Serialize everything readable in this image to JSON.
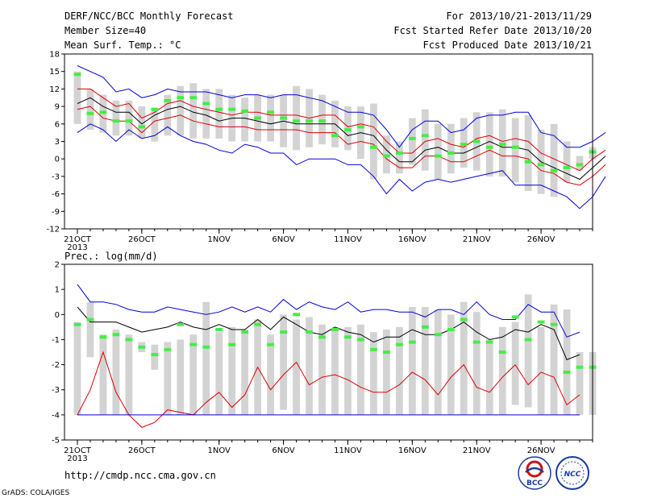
{
  "header": {
    "title": "DERF/NCC/BCC Monthly Forecast",
    "member_size": "Member Size=40",
    "variable": "Mean Surf. Temp.: °C",
    "period": "For 2013/10/21-2013/11/29",
    "started": "Fcst Started Refer Date 2013/10/20",
    "produced": "Fcst Produced Date 2013/10/21"
  },
  "footer": {
    "url": "http://cmdp.ncc.cma.gov.cn",
    "credit": "GrADS: COLA/IGES",
    "logo_bcc": "BCC",
    "logo_ncc": "NCC"
  },
  "colors": {
    "box": "#d3d3d4",
    "obs": "#44ee44",
    "extreme": "#0000dd",
    "percentile": "#dd0000",
    "mean": "#000000"
  },
  "chart_data": [
    {
      "type": "line",
      "title": "Mean Surf. Temp.: °C",
      "x_ticks": [
        {
          "day": 0,
          "label": "21OCT",
          "sub": "2013"
        },
        {
          "day": 5,
          "label": "26OCT"
        },
        {
          "day": 11,
          "label": "1NOV"
        },
        {
          "day": 16,
          "label": "6NOV"
        },
        {
          "day": 21,
          "label": "11NOV"
        },
        {
          "day": 26,
          "label": "16NOV"
        },
        {
          "day": 31,
          "label": "21NOV"
        },
        {
          "day": 36,
          "label": "26NOV"
        }
      ],
      "xlim": [
        -1,
        40
      ],
      "ylim": [
        -12,
        18
      ],
      "y_ticks": [
        18,
        15,
        12,
        9,
        6,
        3,
        0,
        -3,
        -6,
        -9,
        -12
      ],
      "boxes": {
        "low": [
          6,
          5,
          4.5,
          4,
          4,
          3.5,
          3,
          4,
          4,
          3.5,
          3.5,
          3.5,
          3,
          3,
          3,
          3,
          2,
          1.5,
          2,
          2.5,
          2,
          1.5,
          0,
          -3.5,
          -2.5,
          -2.5,
          -1,
          -2,
          -3.5,
          -2.5,
          -1.5,
          -2,
          -3,
          -3,
          -4,
          -5.5,
          -6,
          -6.5,
          -4,
          -2,
          0
        ],
        "high": [
          15,
          12,
          11,
          10,
          10,
          9,
          8.5,
          11,
          12.5,
          13,
          12,
          12,
          11,
          10.5,
          11,
          11,
          11,
          12.5,
          12,
          11,
          10,
          9,
          9,
          9.5,
          4,
          3,
          7,
          8.5,
          6,
          6,
          7,
          8,
          8,
          8.5,
          7,
          7.5,
          5,
          6,
          3,
          0.5,
          2
        ]
      },
      "obs": [
        14.5,
        7.8,
        8,
        6.5,
        6.5,
        5.5,
        8.5,
        10,
        10.5,
        10.5,
        9.5,
        8.5,
        8.5,
        8.2,
        7,
        8,
        7,
        6.5,
        6.5,
        6.5,
        4,
        5,
        5.5,
        2,
        0.5,
        1,
        3.5,
        4,
        0.5,
        1,
        2.5,
        3,
        2,
        2.5,
        2,
        -0.5,
        -1,
        -2,
        -1.5,
        -1,
        1.2
      ],
      "series": [
        {
          "role": "extreme-high",
          "values": [
            16,
            15,
            14,
            11.5,
            12,
            10.5,
            11,
            12,
            11.5,
            11.5,
            11.5,
            11,
            10.5,
            11,
            11,
            10.5,
            11,
            11,
            10.5,
            10,
            9,
            8,
            8,
            7.5,
            5,
            2,
            5,
            6.5,
            6.5,
            4.5,
            5,
            7,
            7.5,
            7.5,
            8,
            8,
            4.5,
            4,
            2,
            2,
            3,
            4.5
          ]
        },
        {
          "role": "p90",
          "values": [
            12,
            12,
            10.5,
            9,
            9.5,
            7,
            8,
            9.5,
            10,
            9,
            8.5,
            8,
            7.5,
            8,
            8,
            7.5,
            7.5,
            7.5,
            7,
            7.5,
            7.5,
            5.5,
            6,
            5.5,
            3,
            1,
            1,
            3,
            3.5,
            2.5,
            2,
            3.5,
            4,
            3,
            3.5,
            3,
            1,
            0,
            -1,
            -2,
            0,
            1.5
          ]
        },
        {
          "role": "mean",
          "values": [
            9.5,
            10.5,
            9,
            8,
            8,
            6,
            7.5,
            8.5,
            9,
            8,
            7.5,
            6.5,
            7,
            7,
            6.5,
            6,
            6.5,
            6,
            6,
            6,
            6,
            4,
            4.5,
            4,
            1.5,
            -0.5,
            -0.5,
            1.5,
            2,
            1,
            1,
            2,
            3,
            2,
            2,
            1.5,
            -0.5,
            -1.5,
            -2.5,
            -3.5,
            -1.5,
            0.5
          ]
        },
        {
          "role": "p10",
          "values": [
            8.5,
            9,
            7,
            6.5,
            6.5,
            4.5,
            6.5,
            7,
            7.5,
            6.5,
            6,
            5.5,
            5.5,
            5.5,
            5,
            5,
            5,
            5,
            4.5,
            4.5,
            4.5,
            2.5,
            3,
            2.5,
            0,
            -1.5,
            -1.5,
            0.5,
            0.5,
            -0.5,
            -0.5,
            0.5,
            1.5,
            0.5,
            0.5,
            0,
            -2,
            -2.5,
            -4,
            -4.5,
            -3,
            -1
          ]
        },
        {
          "role": "extreme-low",
          "values": [
            4.5,
            6,
            5,
            3,
            5,
            3.5,
            4,
            5.5,
            4,
            3,
            2.5,
            1.5,
            1,
            2.5,
            2,
            1,
            1,
            -1,
            0,
            0,
            0,
            -1,
            -1,
            -3,
            -6,
            -3.5,
            -5.5,
            -4,
            -3.5,
            -4,
            -3.5,
            -3,
            -2.5,
            -2,
            -4.5,
            -4.5,
            -4.5,
            -5.5,
            -6.5,
            -8.5,
            -6.5,
            -3
          ]
        }
      ]
    },
    {
      "type": "line",
      "title": "Prec.: log(mm/d)",
      "x_ticks": [
        {
          "day": 0,
          "label": "21OCT",
          "sub": "2013"
        },
        {
          "day": 5,
          "label": "26OCT"
        },
        {
          "day": 11,
          "label": "1NOV"
        },
        {
          "day": 16,
          "label": "6NOV"
        },
        {
          "day": 21,
          "label": "11NOV"
        },
        {
          "day": 26,
          "label": "16NOV"
        },
        {
          "day": 31,
          "label": "21NOV"
        },
        {
          "day": 36,
          "label": "26NOV"
        }
      ],
      "xlim": [
        -1,
        40
      ],
      "ylim": [
        -5,
        2
      ],
      "y_ticks": [
        2,
        1,
        0,
        -1,
        -2,
        -3,
        -4,
        -5
      ],
      "boxes": {
        "low": [
          -4,
          -1.7,
          -4,
          -4,
          -4,
          -1.5,
          -2.2,
          -4,
          -4,
          -4,
          -4,
          -4,
          -4,
          -4,
          -4,
          -4,
          -3.8,
          -4,
          -4,
          -4,
          -4,
          -4,
          -4,
          -4,
          -4,
          -4,
          -4,
          -4,
          -4,
          -4,
          -4,
          -4,
          -4,
          -4,
          -3.6,
          -3.7,
          -4,
          -4,
          -4,
          -4,
          -4
        ],
        "high": [
          -0.3,
          0.5,
          -0.8,
          -0.6,
          -0.8,
          -1.1,
          -1.2,
          -1.1,
          -1,
          -0.8,
          0.5,
          -0.7,
          -0.5,
          -0.6,
          -0.2,
          -0.8,
          0,
          -0.2,
          -0.1,
          -0.4,
          -0.5,
          -0.5,
          -0.4,
          -0.7,
          -0.6,
          -0.5,
          0.3,
          0.3,
          0.2,
          0,
          0.5,
          0.1,
          -1,
          -0.5,
          -0.3,
          0.8,
          -0.5,
          0.4,
          0.2,
          -1.5,
          -1.5
        ]
      },
      "obs": [
        -0.4,
        -0.2,
        -0.9,
        -0.8,
        -1.0,
        -1.3,
        -1.6,
        -1.4,
        -0.4,
        -1.2,
        -1.3,
        -0.6,
        -1.2,
        -0.7,
        -0.4,
        -1.2,
        -0.7,
        0,
        -0.7,
        -0.9,
        -0.6,
        -0.9,
        -1.0,
        -1.4,
        -1.5,
        -1.2,
        -1.1,
        -0.5,
        -0.8,
        -0.6,
        -0.2,
        -1.1,
        -1.1,
        -1.5,
        -0.1,
        -1.0,
        -0.3,
        -0.4,
        -2.3,
        -2.1,
        -2.1
      ],
      "series": [
        {
          "role": "extreme-high",
          "values": [
            1.2,
            0.5,
            0.5,
            0.4,
            0.2,
            0.1,
            0.1,
            0.3,
            0.2,
            0.1,
            0,
            0.1,
            0.3,
            0.1,
            0.3,
            0.1,
            0.6,
            0.2,
            0.5,
            0.3,
            0.2,
            0.5,
            0.1,
            0.2,
            0.2,
            0.1,
            0.1,
            -0.1,
            0.2,
            0.2,
            0,
            0.5,
            0,
            -0.2,
            -0.2,
            0.4,
            0.1,
            0.1,
            -0.9,
            -0.7
          ]
        },
        {
          "role": "mean",
          "values": [
            0.3,
            -0.3,
            -0.3,
            -0.3,
            -0.5,
            -0.7,
            -0.6,
            -0.5,
            -0.3,
            -0.5,
            -0.6,
            -0.4,
            -0.6,
            -0.6,
            -0.2,
            -0.6,
            -0.1,
            -0.4,
            -0.7,
            -0.8,
            -0.5,
            -0.7,
            -0.8,
            -1.1,
            -0.9,
            -0.9,
            -0.6,
            -0.8,
            -0.8,
            -0.6,
            -0.3,
            -0.7,
            -1.0,
            -0.9,
            -0.6,
            -0.7,
            -0.4,
            -0.6,
            -1.8,
            -1.6
          ]
        },
        {
          "role": "p10",
          "values": [
            -4,
            -3,
            -1.5,
            -3.1,
            -4,
            -4.5,
            -4.3,
            -3.8,
            -3.9,
            -4,
            -3.5,
            -3.1,
            -3.7,
            -3.2,
            -2.1,
            -3.0,
            -2.4,
            -1.9,
            -2.8,
            -2.5,
            -2.4,
            -2.6,
            -2.9,
            -3.1,
            -3.1,
            -2.8,
            -2.3,
            -2.6,
            -3.2,
            -2.5,
            -2.0,
            -2.9,
            -3.1,
            -2.5,
            -2.0,
            -2.8,
            -2.3,
            -2.5,
            -3.6,
            -3.2
          ]
        },
        {
          "role": "extreme-low",
          "values": [
            -4,
            -4,
            -4,
            -4,
            -4,
            -4,
            -4,
            -4,
            -4,
            -4,
            -4,
            -4,
            -4,
            -4,
            -4,
            -4,
            -4,
            -4,
            -4,
            -4,
            -4,
            -4,
            -4,
            -4,
            -4,
            -4,
            -4,
            -4,
            -4,
            -4,
            -4,
            -4,
            -4,
            -4,
            -4,
            -4,
            -4,
            -4,
            -4,
            -4
          ]
        }
      ]
    }
  ]
}
